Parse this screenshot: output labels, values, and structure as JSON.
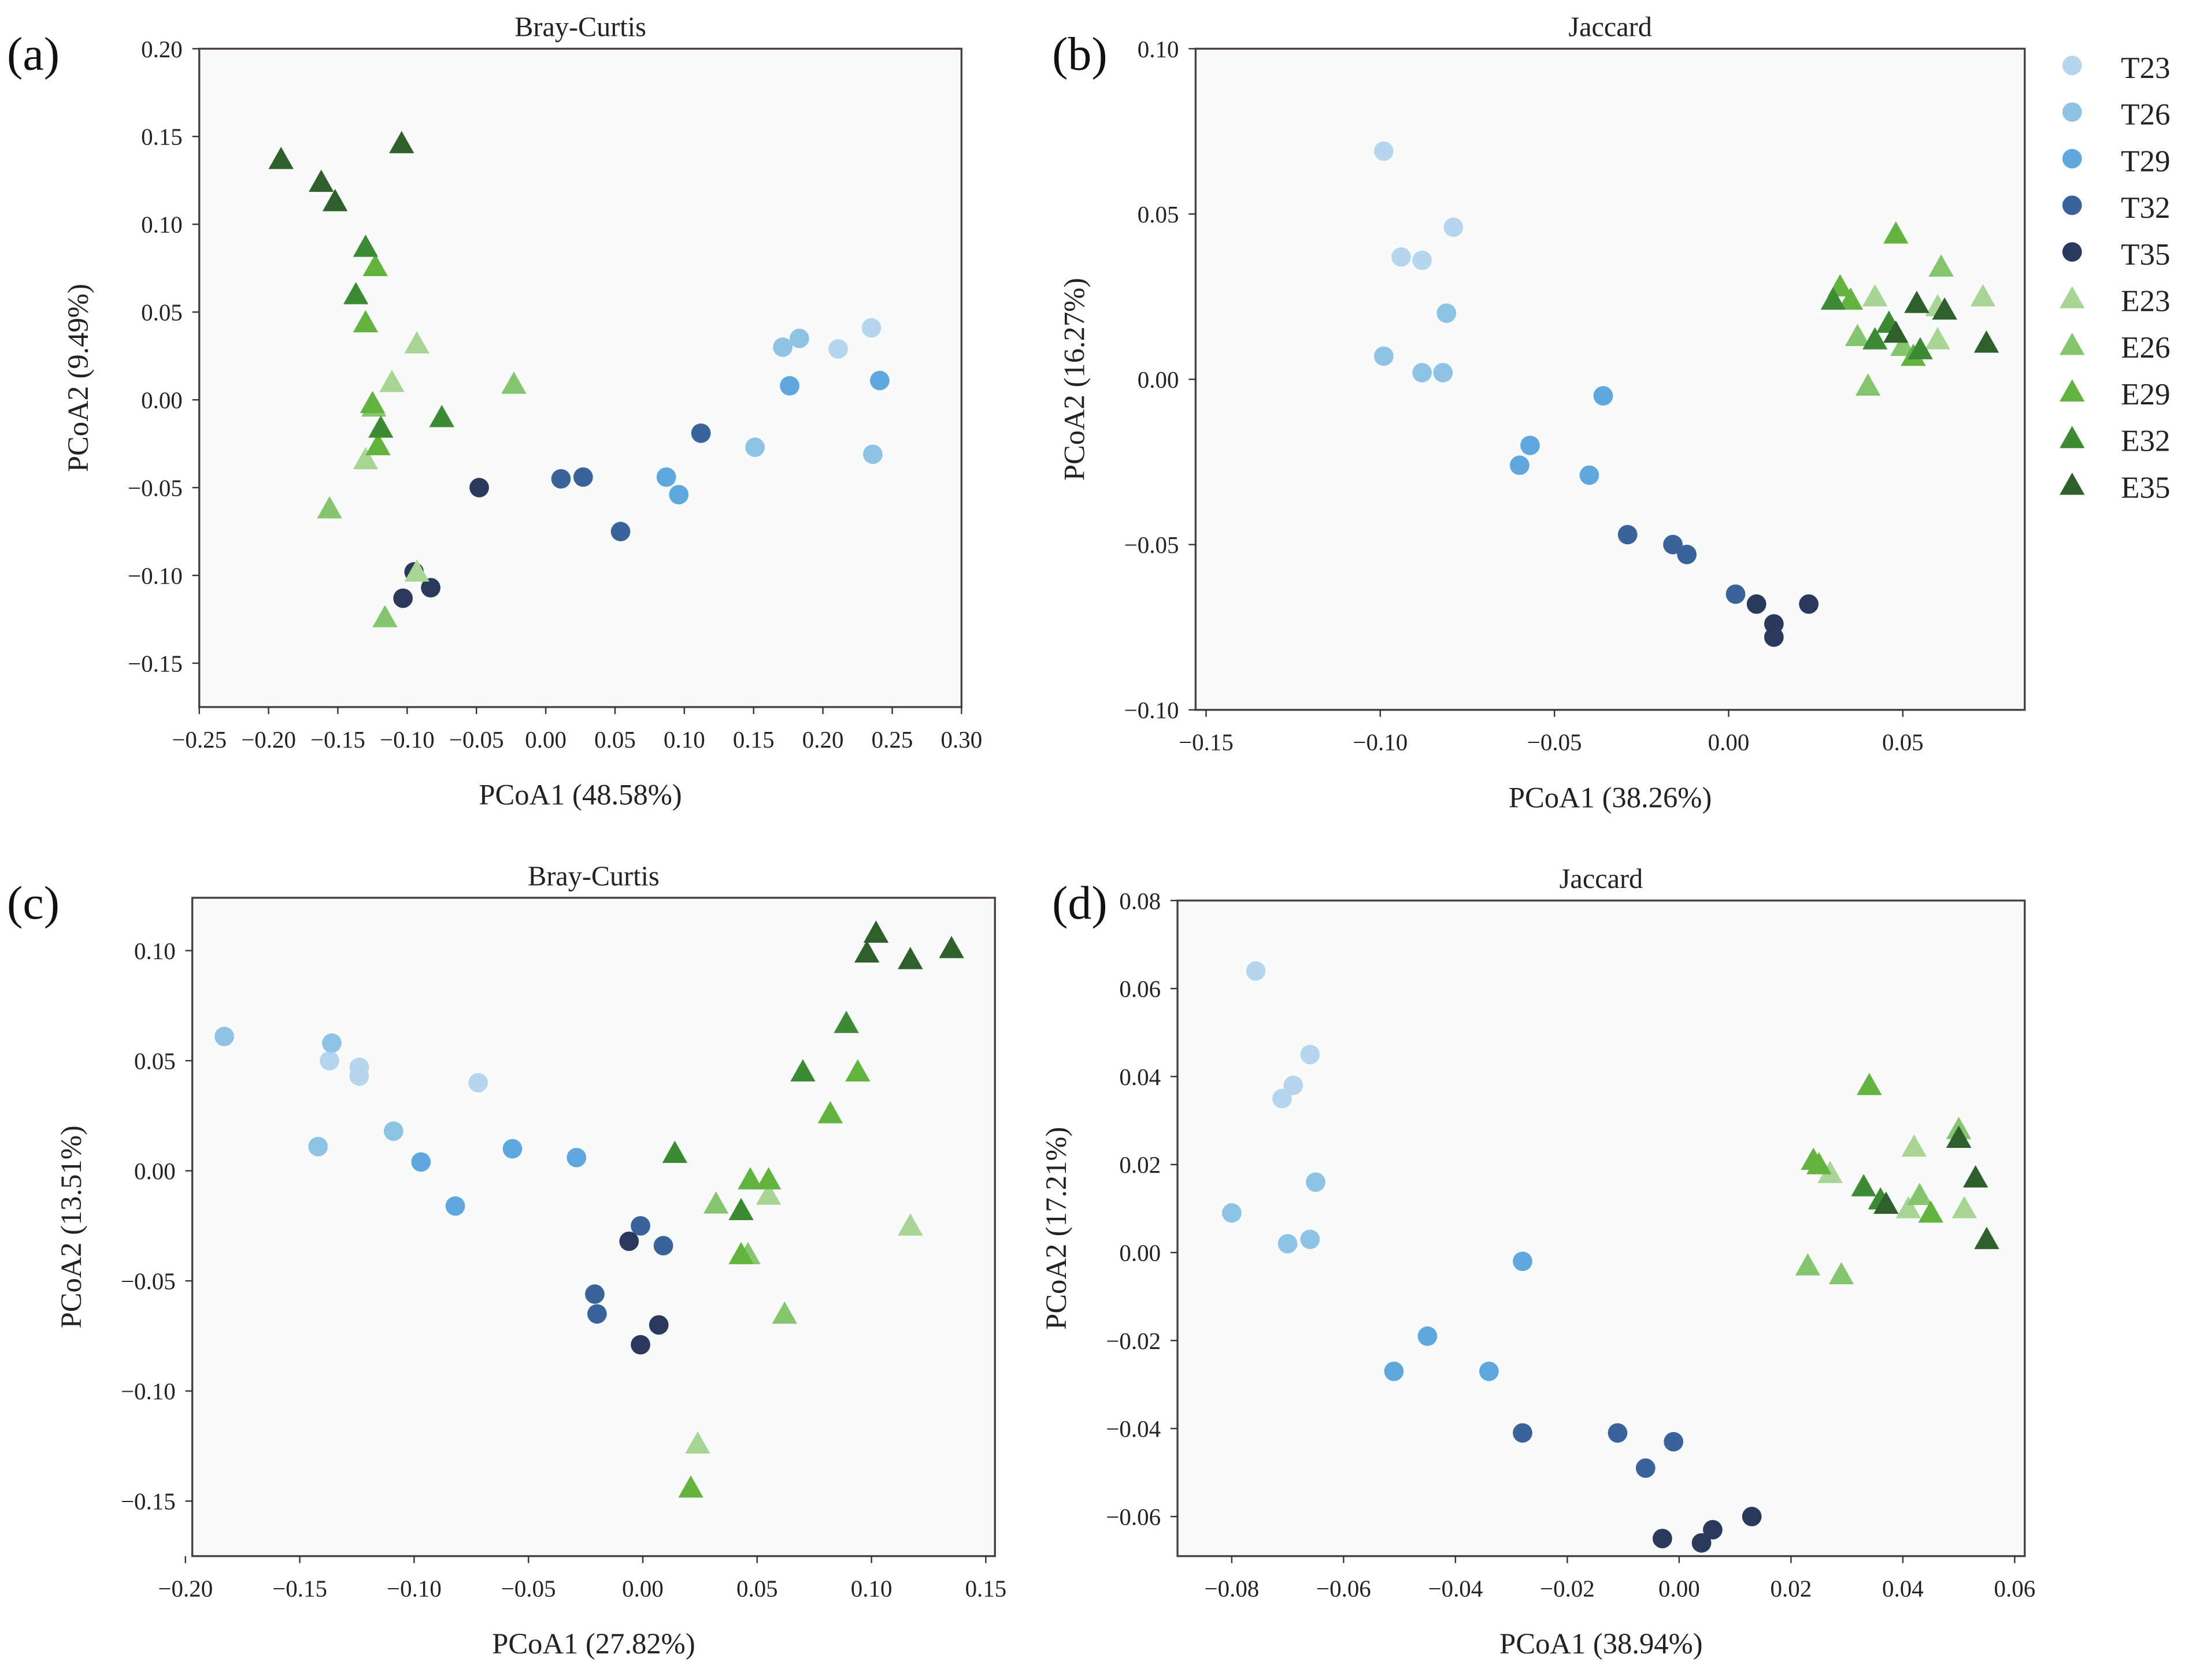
{
  "legend": [
    {
      "name": "T23",
      "shape": "circle",
      "color": "#b5d6ec"
    },
    {
      "name": "T26",
      "shape": "circle",
      "color": "#8ec3e6"
    },
    {
      "name": "T29",
      "shape": "circle",
      "color": "#5fa8dd"
    },
    {
      "name": "T32",
      "shape": "circle",
      "color": "#3a639c"
    },
    {
      "name": "T35",
      "shape": "circle",
      "color": "#2b3a5c"
    },
    {
      "name": "E23",
      "shape": "triangle",
      "color": "#a8d596"
    },
    {
      "name": "E26",
      "shape": "triangle",
      "color": "#84c56d"
    },
    {
      "name": "E29",
      "shape": "triangle",
      "color": "#62b43f"
    },
    {
      "name": "E32",
      "shape": "triangle",
      "color": "#3c8a33"
    },
    {
      "name": "E35",
      "shape": "triangle",
      "color": "#2f5f2b"
    }
  ],
  "chart_data": [
    {
      "panel": "(a)",
      "type": "scatter",
      "title": "Bray-Curtis",
      "xlabel": "PCoA1 (48.58%)",
      "ylabel": "PCoA2 (9.49%)",
      "xlim": [
        -0.25,
        0.3
      ],
      "ylim": [
        -0.175,
        0.2
      ],
      "xticks": [
        "−0.25",
        "−0.20",
        "−0.15",
        "−0.10",
        "−0.05",
        "0.00",
        "0.05",
        "0.10",
        "0.15",
        "0.20",
        "0.25",
        "0.30"
      ],
      "xtick_values": [
        -0.25,
        -0.2,
        -0.15,
        -0.1,
        -0.05,
        0,
        0.05,
        0.1,
        0.15,
        0.2,
        0.25,
        0.3
      ],
      "yticks": [
        "−0.15",
        "−0.10",
        "−0.05",
        "0.00",
        "0.05",
        "0.10",
        "0.15",
        "0.20"
      ],
      "ytick_values": [
        -0.15,
        -0.1,
        -0.05,
        0,
        0.05,
        0.1,
        0.15,
        0.2
      ],
      "series": [
        {
          "name": "T23",
          "points": [
            [
              0.211,
              0.029
            ],
            [
              0.235,
              0.041
            ]
          ]
        },
        {
          "name": "T26",
          "points": [
            [
              0.171,
              0.03
            ],
            [
              0.183,
              0.035
            ],
            [
              0.151,
              -0.027
            ],
            [
              0.236,
              -0.031
            ]
          ]
        },
        {
          "name": "T29",
          "points": [
            [
              0.087,
              -0.044
            ],
            [
              0.096,
              -0.054
            ],
            [
              0.176,
              0.008
            ],
            [
              0.241,
              0.011
            ]
          ]
        },
        {
          "name": "T32",
          "points": [
            [
              0.011,
              -0.045
            ],
            [
              0.027,
              -0.044
            ],
            [
              0.054,
              -0.075
            ],
            [
              0.112,
              -0.019
            ]
          ]
        },
        {
          "name": "T35",
          "points": [
            [
              -0.048,
              -0.05
            ],
            [
              -0.103,
              -0.113
            ],
            [
              -0.083,
              -0.107
            ],
            [
              -0.095,
              -0.098
            ]
          ]
        },
        {
          "name": "E23",
          "points": [
            [
              -0.093,
              0.032
            ],
            [
              -0.111,
              0.01
            ],
            [
              -0.13,
              -0.034
            ],
            [
              -0.093,
              -0.098
            ]
          ]
        },
        {
          "name": "E26",
          "points": [
            [
              -0.023,
              0.009
            ],
            [
              -0.156,
              -0.062
            ],
            [
              -0.116,
              -0.124
            ],
            [
              -0.124,
              -0.004
            ]
          ]
        },
        {
          "name": "E29",
          "points": [
            [
              -0.123,
              0.076
            ],
            [
              -0.13,
              0.044
            ],
            [
              -0.125,
              -0.002
            ],
            [
              -0.121,
              -0.026
            ]
          ]
        },
        {
          "name": "E32",
          "points": [
            [
              -0.13,
              0.087
            ],
            [
              -0.137,
              0.06
            ],
            [
              -0.119,
              -0.016
            ],
            [
              -0.075,
              -0.01
            ]
          ]
        },
        {
          "name": "E35",
          "points": [
            [
              -0.191,
              0.137
            ],
            [
              -0.162,
              0.124
            ],
            [
              -0.152,
              0.113
            ],
            [
              -0.104,
              0.146
            ]
          ]
        }
      ]
    },
    {
      "panel": "(b)",
      "type": "scatter",
      "title": "Jaccard",
      "xlabel": "PCoA1 (38.26%)",
      "ylabel": "PCoA2 (16.27%)",
      "xlim": [
        -0.153,
        0.085
      ],
      "ylim": [
        -0.1,
        0.1
      ],
      "xticks": [
        "−0.15",
        "−0.10",
        "−0.05",
        "0.00",
        "0.05"
      ],
      "xtick_values": [
        -0.15,
        -0.1,
        -0.05,
        0,
        0.05
      ],
      "yticks": [
        "−0.10",
        "−0.05",
        "0.00",
        "0.05",
        "0.10"
      ],
      "ytick_values": [
        -0.1,
        -0.05,
        0,
        0.05,
        0.1
      ],
      "series": [
        {
          "name": "T23",
          "points": [
            [
              -0.099,
              0.069
            ],
            [
              -0.094,
              0.037
            ],
            [
              -0.088,
              0.036
            ],
            [
              -0.079,
              0.046
            ]
          ]
        },
        {
          "name": "T26",
          "points": [
            [
              -0.099,
              0.007
            ],
            [
              -0.088,
              0.002
            ],
            [
              -0.082,
              0.002
            ],
            [
              -0.081,
              0.02
            ]
          ]
        },
        {
          "name": "T29",
          "points": [
            [
              -0.036,
              -0.005
            ],
            [
              -0.057,
              -0.02
            ],
            [
              -0.06,
              -0.026
            ],
            [
              -0.04,
              -0.029
            ]
          ]
        },
        {
          "name": "T32",
          "points": [
            [
              -0.029,
              -0.047
            ],
            [
              -0.016,
              -0.05
            ],
            [
              -0.012,
              -0.053
            ],
            [
              0.002,
              -0.065
            ]
          ]
        },
        {
          "name": "T35",
          "points": [
            [
              0.008,
              -0.068
            ],
            [
              0.013,
              -0.074
            ],
            [
              0.013,
              -0.078
            ],
            [
              0.023,
              -0.068
            ]
          ]
        },
        {
          "name": "E23",
          "points": [
            [
              0.042,
              0.025
            ],
            [
              0.06,
              0.022
            ],
            [
              0.06,
              0.012
            ],
            [
              0.073,
              0.025
            ]
          ]
        },
        {
          "name": "E26",
          "points": [
            [
              0.037,
              0.013
            ],
            [
              0.04,
              -0.002
            ],
            [
              0.05,
              0.01
            ],
            [
              0.061,
              0.034
            ]
          ]
        },
        {
          "name": "E29",
          "points": [
            [
              0.032,
              0.028
            ],
            [
              0.035,
              0.024
            ],
            [
              0.048,
              0.044
            ],
            [
              0.053,
              0.007
            ]
          ]
        },
        {
          "name": "E32",
          "points": [
            [
              0.03,
              0.024
            ],
            [
              0.042,
              0.012
            ],
            [
              0.046,
              0.017
            ],
            [
              0.055,
              0.009
            ]
          ]
        },
        {
          "name": "E35",
          "points": [
            [
              0.048,
              0.014
            ],
            [
              0.054,
              0.023
            ],
            [
              0.062,
              0.021
            ],
            [
              0.074,
              0.011
            ]
          ]
        }
      ]
    },
    {
      "panel": "(c)",
      "type": "scatter",
      "title": "Bray-Curtis",
      "xlabel": "PCoA1 (27.82%)",
      "ylabel": "PCoA2 (13.51%)",
      "xlim": [
        -0.197,
        0.154
      ],
      "ylim": [
        -0.175,
        0.124
      ],
      "xticks": [
        "−0.20",
        "−0.15",
        "−0.10",
        "−0.05",
        "0.00",
        "0.05",
        "0.10",
        "0.15"
      ],
      "xtick_values": [
        -0.2,
        -0.15,
        -0.1,
        -0.05,
        0,
        0.05,
        0.1,
        0.15
      ],
      "yticks": [
        "−0.15",
        "−0.10",
        "−0.05",
        "0.00",
        "0.05",
        "0.10"
      ],
      "ytick_values": [
        -0.15,
        -0.1,
        -0.05,
        0,
        0.05,
        0.1
      ],
      "series": [
        {
          "name": "T23",
          "points": [
            [
              -0.137,
              0.05
            ],
            [
              -0.124,
              0.047
            ],
            [
              -0.124,
              0.043
            ],
            [
              -0.072,
              0.04
            ]
          ]
        },
        {
          "name": "T26",
          "points": [
            [
              -0.183,
              0.061
            ],
            [
              -0.136,
              0.058
            ],
            [
              -0.142,
              0.011
            ],
            [
              -0.109,
              0.018
            ]
          ]
        },
        {
          "name": "T29",
          "points": [
            [
              -0.097,
              0.004
            ],
            [
              -0.082,
              -0.016
            ],
            [
              -0.057,
              0.01
            ],
            [
              -0.029,
              0.006
            ]
          ]
        },
        {
          "name": "T32",
          "points": [
            [
              -0.001,
              -0.025
            ],
            [
              0.009,
              -0.034
            ],
            [
              -0.021,
              -0.056
            ],
            [
              -0.02,
              -0.065
            ]
          ]
        },
        {
          "name": "T35",
          "points": [
            [
              -0.006,
              -0.032
            ],
            [
              0.007,
              -0.07
            ],
            [
              -0.001,
              -0.079
            ]
          ]
        },
        {
          "name": "E23",
          "points": [
            [
              0.055,
              -0.011
            ],
            [
              0.117,
              -0.025
            ],
            [
              0.024,
              -0.124
            ]
          ]
        },
        {
          "name": "E26",
          "points": [
            [
              0.032,
              -0.015
            ],
            [
              0.046,
              -0.038
            ],
            [
              0.062,
              -0.065
            ]
          ]
        },
        {
          "name": "E29",
          "points": [
            [
              0.094,
              0.045
            ],
            [
              0.082,
              0.026
            ],
            [
              0.047,
              -0.004
            ],
            [
              0.055,
              -0.004
            ],
            [
              0.043,
              -0.038
            ],
            [
              0.021,
              -0.144
            ]
          ]
        },
        {
          "name": "E32",
          "points": [
            [
              0.014,
              0.008
            ],
            [
              0.07,
              0.045
            ],
            [
              0.089,
              0.067
            ],
            [
              0.043,
              -0.018
            ]
          ]
        },
        {
          "name": "E35",
          "points": [
            [
              0.098,
              0.099
            ],
            [
              0.102,
              0.108
            ],
            [
              0.117,
              0.096
            ],
            [
              0.135,
              0.101
            ]
          ]
        }
      ]
    },
    {
      "panel": "(d)",
      "type": "scatter",
      "title": "Jaccard",
      "xlabel": "PCoA1 (38.94%)",
      "ylabel": "PCoA2 (17.21%)",
      "xlim": [
        -0.0897,
        0.0618
      ],
      "ylim": [
        -0.069,
        0.08
      ],
      "xticks": [
        "−0.08",
        "−0.06",
        "−0.04",
        "−0.02",
        "0.00",
        "0.02",
        "0.04",
        "0.06"
      ],
      "xtick_values": [
        -0.08,
        -0.06,
        -0.04,
        -0.02,
        0,
        0.02,
        0.04,
        0.06
      ],
      "yticks": [
        "−0.06",
        "−0.04",
        "−0.02",
        "0.00",
        "0.02",
        "0.04",
        "0.06",
        "0.08"
      ],
      "ytick_values": [
        -0.06,
        -0.04,
        -0.02,
        0,
        0.02,
        0.04,
        0.06,
        0.08
      ],
      "series": [
        {
          "name": "T23",
          "points": [
            [
              -0.0757,
              0.064
            ],
            [
              -0.071,
              0.035
            ],
            [
              -0.069,
              0.038
            ],
            [
              -0.066,
              0.045
            ]
          ]
        },
        {
          "name": "T26",
          "points": [
            [
              -0.08,
              0.009
            ],
            [
              -0.07,
              0.002
            ],
            [
              -0.066,
              0.003
            ],
            [
              -0.065,
              0.016
            ]
          ]
        },
        {
          "name": "T29",
          "points": [
            [
              -0.028,
              -0.002
            ],
            [
              -0.051,
              -0.027
            ],
            [
              -0.045,
              -0.019
            ],
            [
              -0.034,
              -0.027
            ]
          ]
        },
        {
          "name": "T32",
          "points": [
            [
              -0.028,
              -0.041
            ],
            [
              -0.011,
              -0.041
            ],
            [
              -0.006,
              -0.049
            ],
            [
              -0.001,
              -0.043
            ]
          ]
        },
        {
          "name": "T35",
          "points": [
            [
              -0.003,
              -0.065
            ],
            [
              0.004,
              -0.066
            ],
            [
              0.006,
              -0.063
            ],
            [
              0.013,
              -0.06
            ]
          ]
        },
        {
          "name": "E23",
          "points": [
            [
              0.042,
              0.024
            ],
            [
              0.041,
              0.01
            ],
            [
              0.051,
              0.01
            ],
            [
              0.027,
              0.018
            ]
          ]
        },
        {
          "name": "E26",
          "points": [
            [
              0.023,
              -0.003
            ],
            [
              0.029,
              -0.005
            ],
            [
              0.043,
              0.013
            ],
            [
              0.05,
              0.028
            ]
          ]
        },
        {
          "name": "E29",
          "points": [
            [
              0.034,
              0.038
            ],
            [
              0.024,
              0.021
            ],
            [
              0.045,
              0.009
            ],
            [
              0.025,
              0.02
            ]
          ]
        },
        {
          "name": "E32",
          "points": [
            [
              0.033,
              0.015
            ],
            [
              0.036,
              0.012
            ],
            [
              0.05,
              0.026
            ]
          ]
        },
        {
          "name": "E35",
          "points": [
            [
              0.037,
              0.011
            ],
            [
              0.053,
              0.017
            ],
            [
              0.055,
              0.003
            ],
            [
              0.05,
              0.026
            ]
          ]
        }
      ]
    }
  ]
}
